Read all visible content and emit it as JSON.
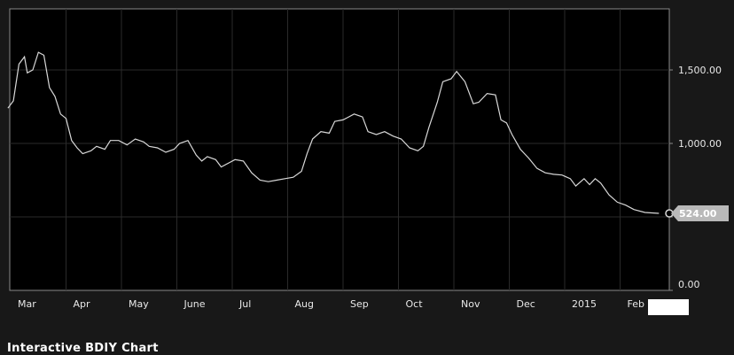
{
  "caption": "Interactive BDIY Chart",
  "chart_data": {
    "type": "line",
    "title": "",
    "xlabel": "",
    "ylabel": "",
    "ylim": [
      0,
      1800
    ],
    "y_ticks": [
      {
        "value": 0,
        "label": "0.00"
      },
      {
        "value": 500,
        "label": ""
      },
      {
        "value": 1000,
        "label": "1,000.00"
      },
      {
        "value": 1500,
        "label": "1,500.00"
      }
    ],
    "x_ticks": [
      {
        "x": 0,
        "label": "Mar"
      },
      {
        "x": 1,
        "label": "Apr"
      },
      {
        "x": 2,
        "label": "May"
      },
      {
        "x": 3,
        "label": "June"
      },
      {
        "x": 4,
        "label": "Jul"
      },
      {
        "x": 5,
        "label": "Aug"
      },
      {
        "x": 6,
        "label": "Sep"
      },
      {
        "x": 7,
        "label": "Oct"
      },
      {
        "x": 8,
        "label": "Nov"
      },
      {
        "x": 9,
        "label": "Dec"
      },
      {
        "x": 10,
        "label": "2015"
      },
      {
        "x": 11,
        "label": "Feb"
      }
    ],
    "grid": true,
    "last_value_label": "524.00",
    "x_unit": "months since start of Mar 2014",
    "series": [
      {
        "name": "",
        "color": "#d8d8d8",
        "points": [
          [
            -0.05,
            1240
          ],
          [
            0.05,
            1290
          ],
          [
            0.15,
            1540
          ],
          [
            0.25,
            1590
          ],
          [
            0.3,
            1480
          ],
          [
            0.4,
            1500
          ],
          [
            0.5,
            1620
          ],
          [
            0.6,
            1600
          ],
          [
            0.7,
            1380
          ],
          [
            0.8,
            1320
          ],
          [
            0.9,
            1200
          ],
          [
            1.0,
            1170
          ],
          [
            1.1,
            1020
          ],
          [
            1.2,
            970
          ],
          [
            1.3,
            930
          ],
          [
            1.45,
            950
          ],
          [
            1.55,
            980
          ],
          [
            1.7,
            960
          ],
          [
            1.8,
            1020
          ],
          [
            1.95,
            1020
          ],
          [
            2.1,
            990
          ],
          [
            2.25,
            1030
          ],
          [
            2.4,
            1010
          ],
          [
            2.5,
            980
          ],
          [
            2.65,
            970
          ],
          [
            2.8,
            940
          ],
          [
            2.95,
            960
          ],
          [
            3.05,
            1000
          ],
          [
            3.2,
            1020
          ],
          [
            3.35,
            920
          ],
          [
            3.45,
            880
          ],
          [
            3.55,
            910
          ],
          [
            3.7,
            890
          ],
          [
            3.8,
            840
          ],
          [
            3.95,
            870
          ],
          [
            4.05,
            890
          ],
          [
            4.2,
            880
          ],
          [
            4.35,
            800
          ],
          [
            4.5,
            750
          ],
          [
            4.65,
            740
          ],
          [
            4.8,
            750
          ],
          [
            4.95,
            760
          ],
          [
            5.1,
            770
          ],
          [
            5.25,
            810
          ],
          [
            5.35,
            930
          ],
          [
            5.45,
            1030
          ],
          [
            5.6,
            1080
          ],
          [
            5.75,
            1070
          ],
          [
            5.85,
            1150
          ],
          [
            6.0,
            1160
          ],
          [
            6.1,
            1180
          ],
          [
            6.2,
            1200
          ],
          [
            6.35,
            1180
          ],
          [
            6.45,
            1080
          ],
          [
            6.6,
            1060
          ],
          [
            6.75,
            1080
          ],
          [
            6.9,
            1050
          ],
          [
            7.05,
            1030
          ],
          [
            7.2,
            970
          ],
          [
            7.35,
            950
          ],
          [
            7.45,
            980
          ],
          [
            7.55,
            1110
          ],
          [
            7.7,
            1280
          ],
          [
            7.8,
            1420
          ],
          [
            7.95,
            1440
          ],
          [
            8.05,
            1490
          ],
          [
            8.2,
            1420
          ],
          [
            8.35,
            1270
          ],
          [
            8.45,
            1280
          ],
          [
            8.6,
            1340
          ],
          [
            8.75,
            1330
          ],
          [
            8.85,
            1160
          ],
          [
            8.95,
            1140
          ],
          [
            9.05,
            1060
          ],
          [
            9.2,
            960
          ],
          [
            9.35,
            900
          ],
          [
            9.5,
            830
          ],
          [
            9.65,
            800
          ],
          [
            9.8,
            790
          ],
          [
            9.95,
            785
          ],
          [
            10.1,
            760
          ],
          [
            10.2,
            710
          ],
          [
            10.35,
            760
          ],
          [
            10.45,
            720
          ],
          [
            10.55,
            760
          ],
          [
            10.65,
            730
          ],
          [
            10.8,
            650
          ],
          [
            10.95,
            600
          ],
          [
            11.1,
            580
          ],
          [
            11.25,
            550
          ],
          [
            11.45,
            530
          ],
          [
            11.7,
            524
          ]
        ]
      }
    ]
  }
}
